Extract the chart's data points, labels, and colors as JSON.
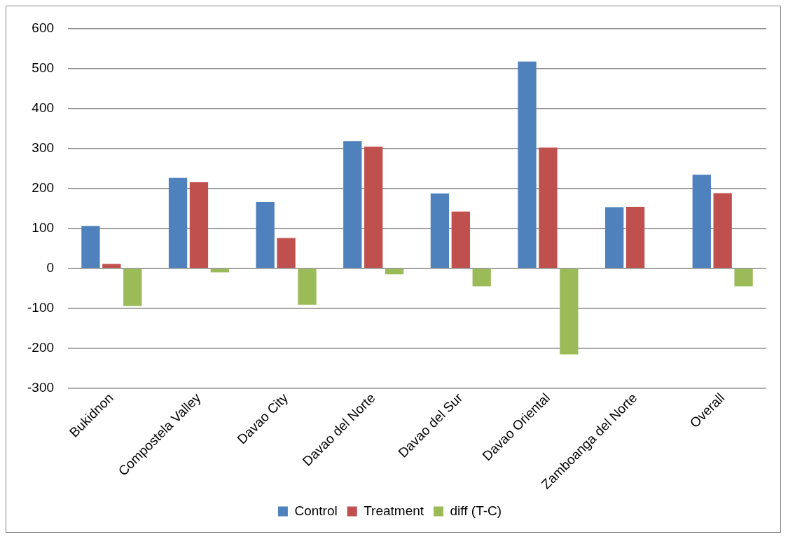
{
  "chart_data": {
    "type": "bar",
    "categories": [
      "Bukidnon",
      "Compostela Valley",
      "Davao City",
      "Davao del Norte",
      "Davao del Sur",
      "Davao Oriental",
      "Zamboanga del Norte",
      "Overall"
    ],
    "series": [
      {
        "name": "Control",
        "color": "#4f81bd",
        "values": [
          106,
          226,
          166,
          318,
          187,
          517,
          153,
          234
        ]
      },
      {
        "name": "Treatment",
        "color": "#c0504d",
        "values": [
          11,
          215,
          76,
          304,
          142,
          302,
          154,
          188
        ]
      },
      {
        "name": "diff (T-C)",
        "color": "#9bbb59",
        "values": [
          -94,
          -10,
          -91,
          -15,
          -45,
          -215,
          null,
          -45
        ]
      }
    ],
    "ylim": [
      -300,
      600
    ],
    "yticks": [
      -300,
      -200,
      -100,
      0,
      100,
      200,
      300,
      400,
      500,
      600
    ],
    "grid": "y",
    "legend": "bottom"
  }
}
